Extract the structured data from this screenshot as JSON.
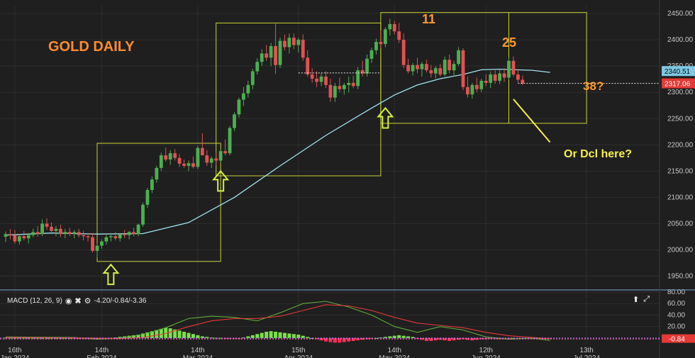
{
  "chart_data": {
    "type": "candlestick",
    "title": "GOLD DAILY",
    "price_axis": {
      "ylim": [
        1925,
        2465
      ],
      "ticks": [
        "2450.00",
        "2400.00",
        "2350.00",
        "2300.00",
        "2250.00",
        "2200.00",
        "2150.00",
        "2100.00",
        "2050.00",
        "2000.00",
        "1950.00"
      ],
      "tick_values": [
        2450,
        2400,
        2350,
        2300,
        2250,
        2200,
        2150,
        2100,
        2050,
        2000,
        1950
      ]
    },
    "price_tags": [
      {
        "label": "2340.51",
        "value": 2340.51,
        "color": "#7ec8e3"
      },
      {
        "label": "2317.06",
        "value": 2317.06,
        "color": "#e53935"
      }
    ],
    "x_axis": {
      "labels": [
        {
          "top": "16th",
          "bottom": "Jan 2024",
          "bar": 2
        },
        {
          "top": "14th",
          "bottom": "Feb 2024",
          "bar": 21
        },
        {
          "top": "14th",
          "bottom": "Mar 2024",
          "bar": 42
        },
        {
          "top": "15th",
          "bottom": "Apr 2024",
          "bar": 64
        },
        {
          "top": "14th",
          "bottom": "May 2024",
          "bar": 85
        },
        {
          "top": "12th",
          "bottom": "Jun 2024",
          "bar": 105
        },
        {
          "top": "13th",
          "bottom": "Jul 2024",
          "bar": 127
        }
      ]
    },
    "ohlc": [
      [
        2025,
        2035,
        2015,
        2030
      ],
      [
        2030,
        2040,
        2020,
        2028
      ],
      [
        2028,
        2038,
        2012,
        2016
      ],
      [
        2016,
        2030,
        2010,
        2026
      ],
      [
        2026,
        2036,
        2018,
        2022
      ],
      [
        2022,
        2032,
        2012,
        2028
      ],
      [
        2028,
        2040,
        2024,
        2034
      ],
      [
        2034,
        2045,
        2025,
        2030
      ],
      [
        2030,
        2058,
        2026,
        2050
      ],
      [
        2050,
        2060,
        2038,
        2044
      ],
      [
        2044,
        2052,
        2030,
        2036
      ],
      [
        2036,
        2046,
        2026,
        2040
      ],
      [
        2040,
        2048,
        2024,
        2030
      ],
      [
        2030,
        2040,
        2022,
        2034
      ],
      [
        2034,
        2042,
        2026,
        2030
      ],
      [
        2030,
        2038,
        2022,
        2034
      ],
      [
        2034,
        2040,
        2024,
        2028
      ],
      [
        2028,
        2036,
        2018,
        2026
      ],
      [
        2026,
        2032,
        2016,
        2024
      ],
      [
        2024,
        2032,
        1995,
        1998
      ],
      [
        1998,
        2012,
        1985,
        2008
      ],
      [
        2008,
        2020,
        2002,
        2016
      ],
      [
        2016,
        2028,
        2010,
        2024
      ],
      [
        2024,
        2032,
        2016,
        2026
      ],
      [
        2026,
        2034,
        2018,
        2022
      ],
      [
        2022,
        2032,
        2016,
        2030
      ],
      [
        2030,
        2038,
        2022,
        2028
      ],
      [
        2028,
        2036,
        2020,
        2034
      ],
      [
        2034,
        2042,
        2026,
        2030
      ],
      [
        2030,
        2050,
        2026,
        2048
      ],
      [
        2048,
        2090,
        2044,
        2086
      ],
      [
        2086,
        2118,
        2080,
        2114
      ],
      [
        2114,
        2140,
        2108,
        2134
      ],
      [
        2134,
        2160,
        2128,
        2156
      ],
      [
        2156,
        2185,
        2150,
        2180
      ],
      [
        2180,
        2195,
        2168,
        2172
      ],
      [
        2172,
        2190,
        2162,
        2184
      ],
      [
        2184,
        2192,
        2170,
        2175
      ],
      [
        2175,
        2182,
        2158,
        2164
      ],
      [
        2164,
        2172,
        2156,
        2160
      ],
      [
        2160,
        2170,
        2150,
        2165
      ],
      [
        2165,
        2178,
        2155,
        2158
      ],
      [
        2158,
        2198,
        2154,
        2194
      ],
      [
        2194,
        2222,
        2180,
        2180
      ],
      [
        2180,
        2190,
        2160,
        2166
      ],
      [
        2166,
        2178,
        2156,
        2174
      ],
      [
        2174,
        2185,
        2160,
        2170
      ],
      [
        2170,
        2192,
        2164,
        2188
      ],
      [
        2188,
        2210,
        2180,
        2184
      ],
      [
        2184,
        2236,
        2180,
        2232
      ],
      [
        2232,
        2262,
        2226,
        2258
      ],
      [
        2258,
        2290,
        2252,
        2286
      ],
      [
        2286,
        2310,
        2274,
        2298
      ],
      [
        2298,
        2322,
        2290,
        2314
      ],
      [
        2314,
        2345,
        2306,
        2340
      ],
      [
        2340,
        2365,
        2334,
        2358
      ],
      [
        2358,
        2382,
        2350,
        2374
      ],
      [
        2374,
        2390,
        2360,
        2366
      ],
      [
        2366,
        2394,
        2350,
        2388
      ],
      [
        2388,
        2432,
        2335,
        2352
      ],
      [
        2352,
        2404,
        2346,
        2398
      ],
      [
        2398,
        2410,
        2380,
        2386
      ],
      [
        2386,
        2412,
        2374,
        2404
      ],
      [
        2404,
        2412,
        2382,
        2390
      ],
      [
        2390,
        2404,
        2376,
        2400
      ],
      [
        2400,
        2410,
        2360,
        2366
      ],
      [
        2366,
        2380,
        2330,
        2334
      ],
      [
        2334,
        2346,
        2318,
        2326
      ],
      [
        2326,
        2340,
        2310,
        2320
      ],
      [
        2320,
        2336,
        2312,
        2330
      ],
      [
        2330,
        2340,
        2308,
        2314
      ],
      [
        2314,
        2326,
        2282,
        2290
      ],
      [
        2290,
        2318,
        2282,
        2312
      ],
      [
        2312,
        2328,
        2300,
        2306
      ],
      [
        2306,
        2318,
        2296,
        2314
      ],
      [
        2314,
        2330,
        2300,
        2318
      ],
      [
        2318,
        2332,
        2308,
        2312
      ],
      [
        2312,
        2348,
        2306,
        2342
      ],
      [
        2342,
        2360,
        2330,
        2336
      ],
      [
        2336,
        2372,
        2330,
        2364
      ],
      [
        2364,
        2385,
        2356,
        2380
      ],
      [
        2380,
        2402,
        2372,
        2396
      ],
      [
        2396,
        2418,
        2384,
        2392
      ],
      [
        2392,
        2424,
        2386,
        2420
      ],
      [
        2420,
        2440,
        2408,
        2430
      ],
      [
        2430,
        2436,
        2410,
        2416
      ],
      [
        2416,
        2432,
        2394,
        2400
      ],
      [
        2400,
        2412,
        2346,
        2352
      ],
      [
        2352,
        2364,
        2336,
        2340
      ],
      [
        2340,
        2356,
        2332,
        2352
      ],
      [
        2352,
        2366,
        2336,
        2344
      ],
      [
        2344,
        2358,
        2330,
        2354
      ],
      [
        2354,
        2362,
        2338,
        2342
      ],
      [
        2342,
        2352,
        2328,
        2336
      ],
      [
        2336,
        2350,
        2326,
        2346
      ],
      [
        2346,
        2354,
        2330,
        2334
      ],
      [
        2334,
        2368,
        2330,
        2362
      ],
      [
        2362,
        2372,
        2336,
        2342
      ],
      [
        2342,
        2360,
        2330,
        2354
      ],
      [
        2354,
        2386,
        2350,
        2380
      ],
      [
        2380,
        2384,
        2304,
        2310
      ],
      [
        2310,
        2330,
        2290,
        2296
      ],
      [
        2296,
        2318,
        2288,
        2314
      ],
      [
        2314,
        2328,
        2300,
        2306
      ],
      [
        2306,
        2326,
        2300,
        2322
      ],
      [
        2322,
        2334,
        2312,
        2318
      ],
      [
        2318,
        2340,
        2308,
        2334
      ],
      [
        2334,
        2342,
        2316,
        2322
      ],
      [
        2322,
        2342,
        2316,
        2336
      ],
      [
        2336,
        2346,
        2320,
        2328
      ],
      [
        2328,
        2366,
        2324,
        2360
      ],
      [
        2360,
        2368,
        2330,
        2334
      ],
      [
        2334,
        2344,
        2318,
        2324
      ],
      [
        2324,
        2332,
        2314,
        2317
      ]
    ],
    "moving_average": {
      "color": "#9fe3f0",
      "values": [
        [
          0,
          2028
        ],
        [
          10,
          2032
        ],
        [
          20,
          2030
        ],
        [
          30,
          2031
        ],
        [
          40,
          2052
        ],
        [
          50,
          2100
        ],
        [
          60,
          2160
        ],
        [
          70,
          2218
        ],
        [
          80,
          2270
        ],
        [
          85,
          2295
        ],
        [
          90,
          2314
        ],
        [
          95,
          2326
        ],
        [
          100,
          2334
        ],
        [
          104,
          2343
        ],
        [
          108,
          2344
        ],
        [
          115,
          2342
        ],
        [
          119,
          2338
        ]
      ]
    },
    "macd": {
      "header": "MACD (12, 26, 9)",
      "values_text": "-4.20/-0.84/-3.36",
      "ylim": [
        -10,
        80
      ],
      "ticks": [
        "80.00",
        "60.00",
        "40.00",
        "20.00"
      ],
      "tick_values": [
        80,
        60,
        40,
        20
      ],
      "last_tag": {
        "label": "-0.84",
        "value": -0.84
      },
      "macd_line": [
        [
          0,
          2
        ],
        [
          15,
          1
        ],
        [
          20,
          -2
        ],
        [
          25,
          0
        ],
        [
          30,
          6
        ],
        [
          35,
          18
        ],
        [
          40,
          34
        ],
        [
          45,
          38
        ],
        [
          50,
          36
        ],
        [
          55,
          30
        ],
        [
          60,
          44
        ],
        [
          65,
          60
        ],
        [
          70,
          64
        ],
        [
          75,
          54
        ],
        [
          80,
          40
        ],
        [
          85,
          20
        ],
        [
          90,
          10
        ],
        [
          95,
          20
        ],
        [
          100,
          14
        ],
        [
          105,
          2
        ],
        [
          110,
          -2
        ],
        [
          115,
          0
        ],
        [
          119,
          -4
        ]
      ],
      "signal_line": [
        [
          0,
          1
        ],
        [
          20,
          0
        ],
        [
          25,
          -1
        ],
        [
          30,
          1
        ],
        [
          35,
          8
        ],
        [
          40,
          20
        ],
        [
          45,
          30
        ],
        [
          50,
          34
        ],
        [
          55,
          34
        ],
        [
          60,
          38
        ],
        [
          65,
          48
        ],
        [
          70,
          58
        ],
        [
          75,
          56
        ],
        [
          80,
          48
        ],
        [
          85,
          36
        ],
        [
          90,
          26
        ],
        [
          95,
          22
        ],
        [
          100,
          18
        ],
        [
          105,
          10
        ],
        [
          110,
          4
        ],
        [
          115,
          1
        ],
        [
          119,
          -1
        ]
      ],
      "histogram": [
        0.8,
        0.6,
        0.4,
        0.5,
        0.4,
        0.3,
        0.2,
        0.2,
        0.1,
        0.1,
        0.2,
        0.1,
        0.1,
        0.2,
        0.1,
        -0.3,
        -0.6,
        -0.8,
        -1.0,
        -1.5,
        -1.8,
        -1.2,
        -0.5,
        0.3,
        1,
        2,
        3,
        4,
        5,
        6,
        8,
        10,
        12,
        14,
        16,
        18,
        17,
        15,
        13,
        11,
        9,
        7,
        5,
        3,
        2,
        1,
        0.5,
        0.3,
        -0.5,
        -1,
        -1,
        -0.5,
        1,
        3,
        5,
        7,
        9,
        11,
        12,
        11,
        10,
        9,
        8,
        7,
        6,
        4,
        2,
        0,
        -2,
        -4,
        -6,
        -7,
        -8,
        -8,
        -7,
        -6,
        -5,
        -4,
        -3,
        -2,
        -1,
        0,
        1,
        2,
        3,
        4,
        5,
        4,
        3,
        2,
        -1,
        -3,
        -5,
        -5,
        -4,
        -3,
        -4,
        -5,
        -4,
        -3,
        -2,
        -3,
        -4,
        -3,
        -2,
        -2,
        -1,
        -1,
        -2,
        -1,
        -1,
        0,
        -1,
        -1,
        -1,
        -1,
        -1,
        -1,
        -1,
        -1
      ]
    },
    "annotations": [
      {
        "text": "11",
        "color": "#ff9a2e"
      },
      {
        "text": "25",
        "color": "#ff9a2e"
      },
      {
        "text": "38?",
        "color": "#ff9a2e"
      },
      {
        "text": "Or Dcl here?",
        "color": "#f6f04a"
      }
    ],
    "colors": {
      "up": "#4caf50",
      "down": "#e05252",
      "box": "#c9d23a",
      "arrow": "#d4f043",
      "bg": "#1f1f1f",
      "grid": "#2e2e2e"
    },
    "grid": true
  },
  "macd_header": {
    "label": "MACD (12, 26, 9)",
    "values": "-4.20/-0.84/-3.36",
    "icons": [
      "eye-icon",
      "close-icon",
      "gear-icon"
    ]
  },
  "corner_icons": [
    "arrow-up-icon",
    "expand-icon"
  ]
}
